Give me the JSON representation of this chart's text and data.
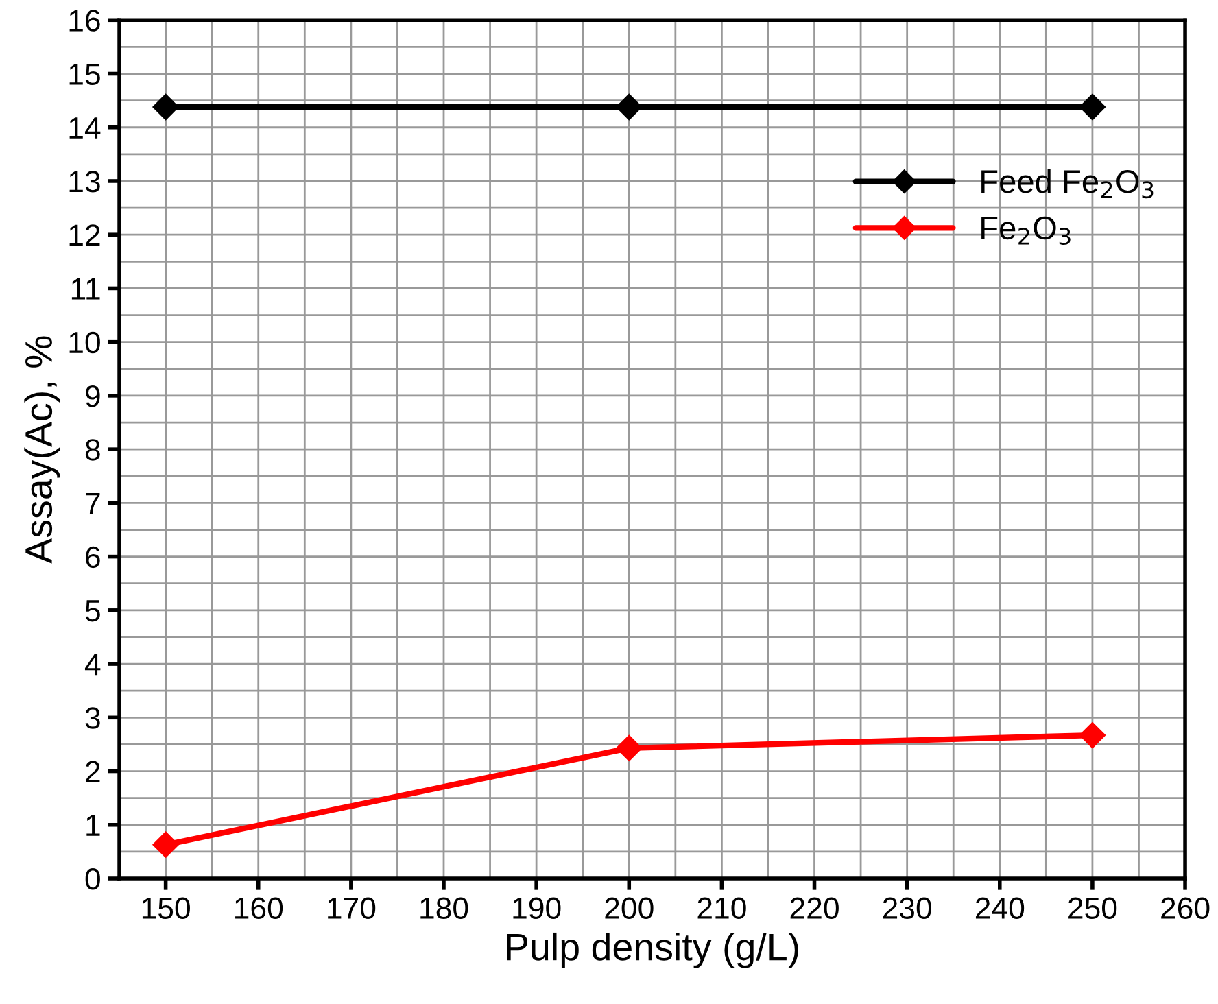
{
  "chart_data": {
    "type": "line",
    "xlabel": "Pulp density (g/L)",
    "ylabel": "Assay(Ac), %",
    "x": [
      150,
      200,
      250
    ],
    "series": [
      {
        "name": "Feed Fe$_{2}$O$_{3}$",
        "color": "#000000",
        "values": [
          14.38,
          14.38,
          14.38
        ]
      },
      {
        "name": "Fe$_{2}$O$_{3}$",
        "color": "#ff0000",
        "values": [
          0.63,
          2.43,
          2.67
        ]
      }
    ],
    "xlim": [
      145,
      260
    ],
    "xticks": [
      150,
      160,
      170,
      180,
      190,
      200,
      210,
      220,
      230,
      240,
      250,
      260
    ],
    "ylim": [
      0,
      16
    ],
    "yticks": [
      0,
      1,
      2,
      3,
      4,
      5,
      6,
      7,
      8,
      9,
      10,
      11,
      12,
      13,
      14,
      15,
      16
    ],
    "grid": true,
    "legend": "top right",
    "marker": "diamond",
    "line_style": "solid"
  }
}
